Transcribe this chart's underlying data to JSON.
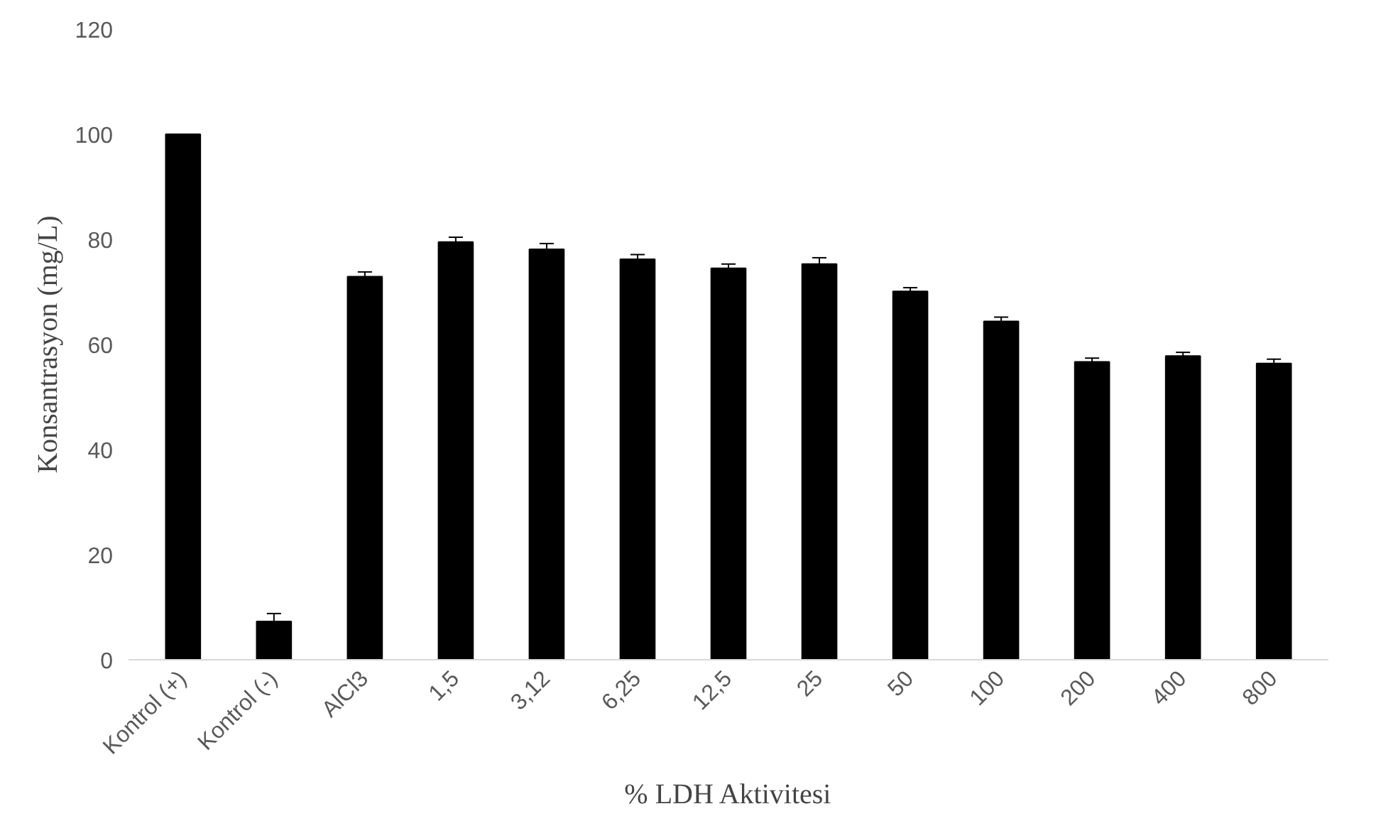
{
  "chart_data": {
    "type": "bar",
    "xlabel": "% LDH Aktivitesi",
    "ylabel": "Konsantrasyon (mg/L)",
    "categories": [
      "Kontrol (+)",
      "Kontrol (-)",
      "AlCl3",
      "1,5",
      "3,12",
      "6,25",
      "12,5",
      "25",
      "50",
      "100",
      "200",
      "400",
      "800"
    ],
    "values": [
      100,
      7.3,
      72.9,
      79.5,
      78.1,
      76.2,
      74.5,
      75.3,
      70.1,
      64.4,
      56.7,
      57.8,
      56.4
    ],
    "errors": [
      null,
      1.5,
      0.9,
      0.9,
      1.1,
      0.9,
      0.8,
      1.2,
      0.7,
      0.8,
      0.7,
      0.7,
      0.8
    ],
    "color": "#000000",
    "ylim": [
      0,
      120
    ],
    "yticks": [
      0,
      20,
      40,
      60,
      80,
      100,
      120
    ],
    "grid": false
  }
}
